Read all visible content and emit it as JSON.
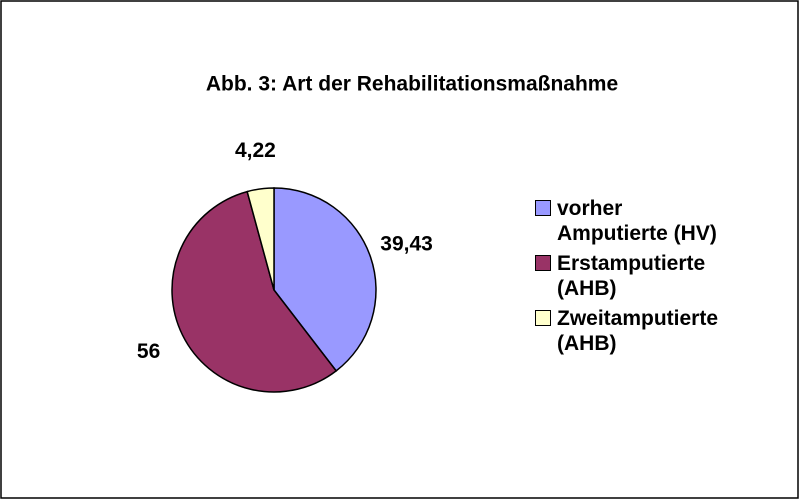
{
  "chart_data": {
    "type": "pie",
    "title": "Abb. 3: Art der Rehabilitationsmaßnahme",
    "categories": [
      "vorher Amputierte (HV)",
      "Erstamputierte (AHB)",
      "Zweitamputierte (AHB)"
    ],
    "values": [
      39.43,
      56,
      4.22
    ],
    "value_labels": [
      "39,43",
      "56",
      "4,22"
    ],
    "colors": [
      "#9999ff",
      "#993366",
      "#ffffcc"
    ],
    "legend": "right"
  }
}
